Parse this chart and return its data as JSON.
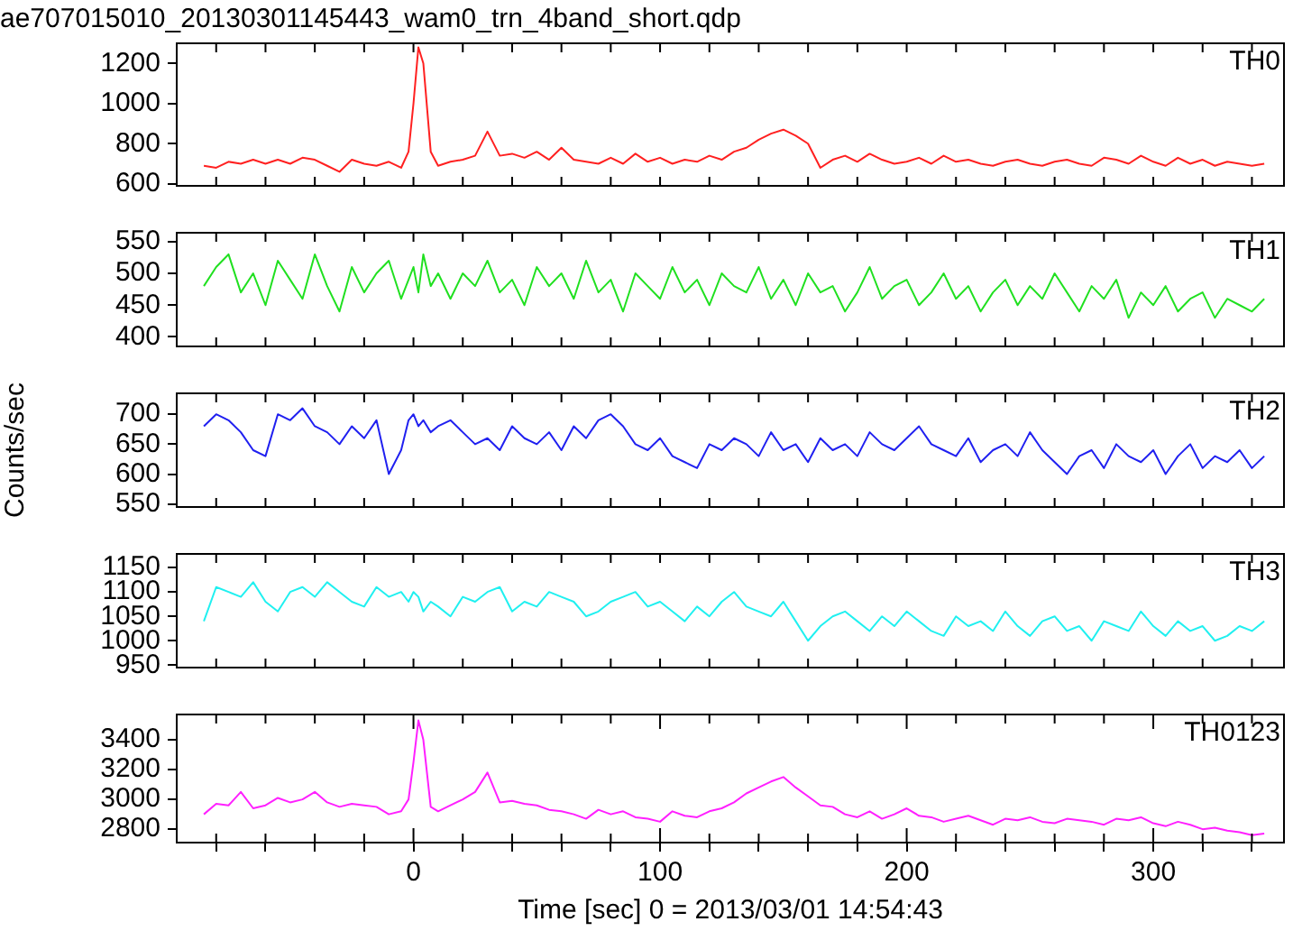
{
  "chart_data": [
    {
      "type": "line",
      "title": "ae707015010_20130301145443_wam0_trn_4band_short.qdp",
      "x": [
        -85,
        -80,
        -75,
        -70,
        -65,
        -60,
        -55,
        -50,
        -45,
        -40,
        -35,
        -30,
        -25,
        -20,
        -15,
        -10,
        -5,
        -2,
        0,
        2,
        4,
        7,
        10,
        15,
        20,
        25,
        30,
        35,
        40,
        45,
        50,
        55,
        60,
        65,
        70,
        75,
        80,
        85,
        90,
        95,
        100,
        105,
        110,
        115,
        120,
        125,
        130,
        135,
        140,
        145,
        150,
        155,
        160,
        165,
        170,
        175,
        180,
        185,
        190,
        195,
        200,
        205,
        210,
        215,
        220,
        225,
        230,
        235,
        240,
        245,
        250,
        255,
        260,
        265,
        270,
        275,
        280,
        285,
        290,
        295,
        300,
        305,
        310,
        315,
        320,
        325,
        330,
        335,
        340,
        345
      ],
      "xlim": [
        -96,
        353
      ],
      "xticks": [
        {
          "value": -80,
          "label": null
        },
        {
          "value": -60,
          "label": null
        },
        {
          "value": -40,
          "label": null
        },
        {
          "value": -20,
          "label": null
        },
        {
          "value": 0,
          "label": null
        },
        {
          "value": 20,
          "label": null
        },
        {
          "value": 40,
          "label": null
        },
        {
          "value": 60,
          "label": null
        },
        {
          "value": 80,
          "label": null
        },
        {
          "value": 100,
          "label": null
        },
        {
          "value": 120,
          "label": null
        },
        {
          "value": 140,
          "label": null
        },
        {
          "value": 160,
          "label": null
        },
        {
          "value": 180,
          "label": null
        },
        {
          "value": 200,
          "label": null
        },
        {
          "value": 220,
          "label": null
        },
        {
          "value": 240,
          "label": null
        },
        {
          "value": 260,
          "label": null
        },
        {
          "value": 280,
          "label": null
        },
        {
          "value": 300,
          "label": null
        },
        {
          "value": 320,
          "label": null
        },
        {
          "value": 340,
          "label": null
        }
      ],
      "ylim": [
        590,
        1300
      ],
      "yticks": [
        600,
        800,
        1000,
        1200
      ],
      "tick_labels": "y",
      "legend": false,
      "marker": "none",
      "line_style": "solid",
      "series": [
        {
          "name": "TH0",
          "color": "#ff2020",
          "values": [
            690,
            680,
            710,
            700,
            720,
            700,
            720,
            700,
            730,
            720,
            690,
            660,
            720,
            700,
            690,
            710,
            680,
            760,
            1000,
            1280,
            1200,
            760,
            690,
            710,
            720,
            740,
            860,
            740,
            750,
            730,
            760,
            720,
            780,
            720,
            710,
            700,
            730,
            700,
            750,
            710,
            730,
            700,
            720,
            710,
            740,
            720,
            760,
            780,
            820,
            850,
            870,
            840,
            800,
            680,
            720,
            740,
            710,
            750,
            720,
            700,
            710,
            730,
            700,
            740,
            710,
            720,
            700,
            690,
            710,
            720,
            700,
            690,
            710,
            720,
            700,
            690,
            730,
            720,
            700,
            740,
            710,
            690,
            730,
            700,
            720,
            690,
            710,
            700,
            690,
            700
          ]
        }
      ]
    },
    {
      "type": "line",
      "x": [
        -85,
        -80,
        -75,
        -70,
        -65,
        -60,
        -55,
        -50,
        -45,
        -40,
        -35,
        -30,
        -25,
        -20,
        -15,
        -10,
        -5,
        -2,
        0,
        2,
        4,
        7,
        10,
        15,
        20,
        25,
        30,
        35,
        40,
        45,
        50,
        55,
        60,
        65,
        70,
        75,
        80,
        85,
        90,
        95,
        100,
        105,
        110,
        115,
        120,
        125,
        130,
        135,
        140,
        145,
        150,
        155,
        160,
        165,
        170,
        175,
        180,
        185,
        190,
        195,
        200,
        205,
        210,
        215,
        220,
        225,
        230,
        235,
        240,
        245,
        250,
        255,
        260,
        265,
        270,
        275,
        280,
        285,
        290,
        295,
        300,
        305,
        310,
        315,
        320,
        325,
        330,
        335,
        340,
        345
      ],
      "xlim": [
        -96,
        353
      ],
      "xticks": [
        {
          "value": -80,
          "label": null
        },
        {
          "value": -60,
          "label": null
        },
        {
          "value": -40,
          "label": null
        },
        {
          "value": -20,
          "label": null
        },
        {
          "value": 0,
          "label": null
        },
        {
          "value": 20,
          "label": null
        },
        {
          "value": 40,
          "label": null
        },
        {
          "value": 60,
          "label": null
        },
        {
          "value": 80,
          "label": null
        },
        {
          "value": 100,
          "label": null
        },
        {
          "value": 120,
          "label": null
        },
        {
          "value": 140,
          "label": null
        },
        {
          "value": 160,
          "label": null
        },
        {
          "value": 180,
          "label": null
        },
        {
          "value": 200,
          "label": null
        },
        {
          "value": 220,
          "label": null
        },
        {
          "value": 240,
          "label": null
        },
        {
          "value": 260,
          "label": null
        },
        {
          "value": 280,
          "label": null
        },
        {
          "value": 300,
          "label": null
        },
        {
          "value": 320,
          "label": null
        },
        {
          "value": 340,
          "label": null
        }
      ],
      "ylim": [
        385,
        564
      ],
      "yticks": [
        400,
        450,
        500,
        550
      ],
      "tick_labels": "y",
      "legend": false,
      "marker": "none",
      "line_style": "solid",
      "series": [
        {
          "name": "TH1",
          "color": "#20e020",
          "values": [
            480,
            510,
            530,
            470,
            500,
            450,
            520,
            490,
            460,
            530,
            480,
            440,
            510,
            470,
            500,
            520,
            460,
            490,
            510,
            470,
            530,
            480,
            500,
            460,
            500,
            480,
            520,
            470,
            490,
            450,
            510,
            480,
            500,
            460,
            520,
            470,
            490,
            440,
            500,
            480,
            460,
            510,
            470,
            490,
            450,
            500,
            480,
            470,
            510,
            460,
            490,
            450,
            500,
            470,
            480,
            440,
            470,
            510,
            460,
            480,
            490,
            450,
            470,
            500,
            460,
            480,
            440,
            470,
            490,
            450,
            480,
            460,
            500,
            470,
            440,
            480,
            460,
            490,
            430,
            470,
            450,
            480,
            440,
            460,
            470,
            430,
            460,
            450,
            440,
            460
          ]
        }
      ]
    },
    {
      "type": "line",
      "ylabel": "Counts/sec",
      "x": [
        -85,
        -80,
        -75,
        -70,
        -65,
        -60,
        -55,
        -50,
        -45,
        -40,
        -35,
        -30,
        -25,
        -20,
        -15,
        -10,
        -5,
        -2,
        0,
        2,
        4,
        7,
        10,
        15,
        20,
        25,
        30,
        35,
        40,
        45,
        50,
        55,
        60,
        65,
        70,
        75,
        80,
        85,
        90,
        95,
        100,
        105,
        110,
        115,
        120,
        125,
        130,
        135,
        140,
        145,
        150,
        155,
        160,
        165,
        170,
        175,
        180,
        185,
        190,
        195,
        200,
        205,
        210,
        215,
        220,
        225,
        230,
        235,
        240,
        245,
        250,
        255,
        260,
        265,
        270,
        275,
        280,
        285,
        290,
        295,
        300,
        305,
        310,
        315,
        320,
        325,
        330,
        335,
        340,
        345
      ],
      "xlim": [
        -96,
        353
      ],
      "xticks": [
        {
          "value": -80,
          "label": null
        },
        {
          "value": -60,
          "label": null
        },
        {
          "value": -40,
          "label": null
        },
        {
          "value": -20,
          "label": null
        },
        {
          "value": 0,
          "label": null
        },
        {
          "value": 20,
          "label": null
        },
        {
          "value": 40,
          "label": null
        },
        {
          "value": 60,
          "label": null
        },
        {
          "value": 80,
          "label": null
        },
        {
          "value": 100,
          "label": null
        },
        {
          "value": 120,
          "label": null
        },
        {
          "value": 140,
          "label": null
        },
        {
          "value": 160,
          "label": null
        },
        {
          "value": 180,
          "label": null
        },
        {
          "value": 200,
          "label": null
        },
        {
          "value": 220,
          "label": null
        },
        {
          "value": 240,
          "label": null
        },
        {
          "value": 260,
          "label": null
        },
        {
          "value": 280,
          "label": null
        },
        {
          "value": 300,
          "label": null
        },
        {
          "value": 320,
          "label": null
        },
        {
          "value": 340,
          "label": null
        }
      ],
      "ylim": [
        545,
        735
      ],
      "yticks": [
        550,
        600,
        650,
        700
      ],
      "tick_labels": "y",
      "legend": false,
      "marker": "none",
      "line_style": "solid",
      "series": [
        {
          "name": "TH2",
          "color": "#2020f0",
          "values": [
            680,
            700,
            690,
            670,
            640,
            630,
            700,
            690,
            710,
            680,
            670,
            650,
            680,
            660,
            690,
            600,
            640,
            690,
            700,
            680,
            690,
            670,
            680,
            690,
            670,
            650,
            660,
            640,
            680,
            660,
            650,
            670,
            640,
            680,
            660,
            690,
            700,
            680,
            650,
            640,
            660,
            630,
            620,
            610,
            650,
            640,
            660,
            650,
            630,
            670,
            640,
            650,
            620,
            660,
            640,
            650,
            630,
            670,
            650,
            640,
            660,
            680,
            650,
            640,
            630,
            660,
            620,
            640,
            650,
            630,
            670,
            640,
            620,
            600,
            630,
            640,
            610,
            650,
            630,
            620,
            640,
            600,
            630,
            650,
            610,
            630,
            620,
            640,
            610,
            630
          ]
        }
      ]
    },
    {
      "type": "line",
      "x": [
        -85,
        -80,
        -75,
        -70,
        -65,
        -60,
        -55,
        -50,
        -45,
        -40,
        -35,
        -30,
        -25,
        -20,
        -15,
        -10,
        -5,
        -2,
        0,
        2,
        4,
        7,
        10,
        15,
        20,
        25,
        30,
        35,
        40,
        45,
        50,
        55,
        60,
        65,
        70,
        75,
        80,
        85,
        90,
        95,
        100,
        105,
        110,
        115,
        120,
        125,
        130,
        135,
        140,
        145,
        150,
        155,
        160,
        165,
        170,
        175,
        180,
        185,
        190,
        195,
        200,
        205,
        210,
        215,
        220,
        225,
        230,
        235,
        240,
        245,
        250,
        255,
        260,
        265,
        270,
        275,
        280,
        285,
        290,
        295,
        300,
        305,
        310,
        315,
        320,
        325,
        330,
        335,
        340,
        345
      ],
      "xlim": [
        -96,
        353
      ],
      "xticks": [
        {
          "value": -80,
          "label": null
        },
        {
          "value": -60,
          "label": null
        },
        {
          "value": -40,
          "label": null
        },
        {
          "value": -20,
          "label": null
        },
        {
          "value": 0,
          "label": null
        },
        {
          "value": 20,
          "label": null
        },
        {
          "value": 40,
          "label": null
        },
        {
          "value": 60,
          "label": null
        },
        {
          "value": 80,
          "label": null
        },
        {
          "value": 100,
          "label": null
        },
        {
          "value": 120,
          "label": null
        },
        {
          "value": 140,
          "label": null
        },
        {
          "value": 160,
          "label": null
        },
        {
          "value": 180,
          "label": null
        },
        {
          "value": 200,
          "label": null
        },
        {
          "value": 220,
          "label": null
        },
        {
          "value": 240,
          "label": null
        },
        {
          "value": 260,
          "label": null
        },
        {
          "value": 280,
          "label": null
        },
        {
          "value": 300,
          "label": null
        },
        {
          "value": 320,
          "label": null
        },
        {
          "value": 340,
          "label": null
        }
      ],
      "ylim": [
        945,
        1178
      ],
      "yticks": [
        950,
        1000,
        1050,
        1100,
        1150
      ],
      "tick_labels": "y",
      "legend": false,
      "marker": "none",
      "line_style": "solid",
      "series": [
        {
          "name": "TH3",
          "color": "#20f0f0",
          "values": [
            1040,
            1110,
            1100,
            1090,
            1120,
            1080,
            1060,
            1100,
            1110,
            1090,
            1120,
            1100,
            1080,
            1070,
            1110,
            1090,
            1100,
            1080,
            1100,
            1090,
            1060,
            1080,
            1070,
            1050,
            1090,
            1080,
            1100,
            1110,
            1060,
            1080,
            1070,
            1100,
            1090,
            1080,
            1050,
            1060,
            1080,
            1090,
            1100,
            1070,
            1080,
            1060,
            1040,
            1070,
            1050,
            1080,
            1100,
            1070,
            1060,
            1050,
            1080,
            1040,
            1000,
            1030,
            1050,
            1060,
            1040,
            1020,
            1050,
            1030,
            1060,
            1040,
            1020,
            1010,
            1050,
            1030,
            1040,
            1020,
            1060,
            1030,
            1010,
            1040,
            1050,
            1020,
            1030,
            1000,
            1040,
            1030,
            1020,
            1060,
            1030,
            1010,
            1040,
            1020,
            1030,
            1000,
            1010,
            1030,
            1020,
            1040
          ]
        }
      ]
    },
    {
      "type": "line",
      "xlabel": "Time [sec] 0 = 2013/03/01 14:54:43",
      "x": [
        -85,
        -80,
        -75,
        -70,
        -65,
        -60,
        -55,
        -50,
        -45,
        -40,
        -35,
        -30,
        -25,
        -20,
        -15,
        -10,
        -5,
        -2,
        0,
        2,
        4,
        7,
        10,
        15,
        20,
        25,
        30,
        35,
        40,
        45,
        50,
        55,
        60,
        65,
        70,
        75,
        80,
        85,
        90,
        95,
        100,
        105,
        110,
        115,
        120,
        125,
        130,
        135,
        140,
        145,
        150,
        155,
        160,
        165,
        170,
        175,
        180,
        185,
        190,
        195,
        200,
        205,
        210,
        215,
        220,
        225,
        230,
        235,
        240,
        245,
        250,
        255,
        260,
        265,
        270,
        275,
        280,
        285,
        290,
        295,
        300,
        305,
        310,
        315,
        320,
        325,
        330,
        335,
        340,
        345
      ],
      "xlim": [
        -96,
        353
      ],
      "xticks": [
        {
          "value": -80,
          "label": null
        },
        {
          "value": -60,
          "label": null
        },
        {
          "value": -40,
          "label": null
        },
        {
          "value": -20,
          "label": null
        },
        {
          "value": 0,
          "label": "0"
        },
        {
          "value": 20,
          "label": null
        },
        {
          "value": 40,
          "label": null
        },
        {
          "value": 60,
          "label": null
        },
        {
          "value": 80,
          "label": null
        },
        {
          "value": 100,
          "label": "100"
        },
        {
          "value": 120,
          "label": null
        },
        {
          "value": 140,
          "label": null
        },
        {
          "value": 160,
          "label": null
        },
        {
          "value": 180,
          "label": null
        },
        {
          "value": 200,
          "label": "200"
        },
        {
          "value": 220,
          "label": null
        },
        {
          "value": 240,
          "label": null
        },
        {
          "value": 260,
          "label": null
        },
        {
          "value": 280,
          "label": null
        },
        {
          "value": 300,
          "label": "300"
        },
        {
          "value": 320,
          "label": null
        },
        {
          "value": 340,
          "label": null
        }
      ],
      "ylim": [
        2710,
        3570
      ],
      "yticks": [
        2800,
        3000,
        3200,
        3400
      ],
      "legend": false,
      "marker": "none",
      "line_style": "solid",
      "series": [
        {
          "name": "TH0123",
          "color": "#ff20ff",
          "values": [
            2900,
            2970,
            2960,
            3050,
            2940,
            2960,
            3010,
            2980,
            3000,
            3050,
            2980,
            2950,
            2970,
            2960,
            2950,
            2900,
            2920,
            3000,
            3250,
            3530,
            3400,
            2950,
            2920,
            2960,
            3000,
            3050,
            3180,
            2980,
            2990,
            2970,
            2960,
            2930,
            2920,
            2900,
            2870,
            2930,
            2900,
            2920,
            2880,
            2870,
            2850,
            2920,
            2890,
            2880,
            2920,
            2940,
            2980,
            3040,
            3080,
            3120,
            3150,
            3080,
            3020,
            2960,
            2950,
            2900,
            2880,
            2920,
            2870,
            2900,
            2940,
            2890,
            2880,
            2850,
            2870,
            2890,
            2860,
            2830,
            2870,
            2860,
            2880,
            2850,
            2840,
            2870,
            2860,
            2850,
            2830,
            2870,
            2860,
            2880,
            2840,
            2820,
            2850,
            2830,
            2800,
            2810,
            2790,
            2780,
            2760,
            2770
          ]
        }
      ]
    }
  ]
}
